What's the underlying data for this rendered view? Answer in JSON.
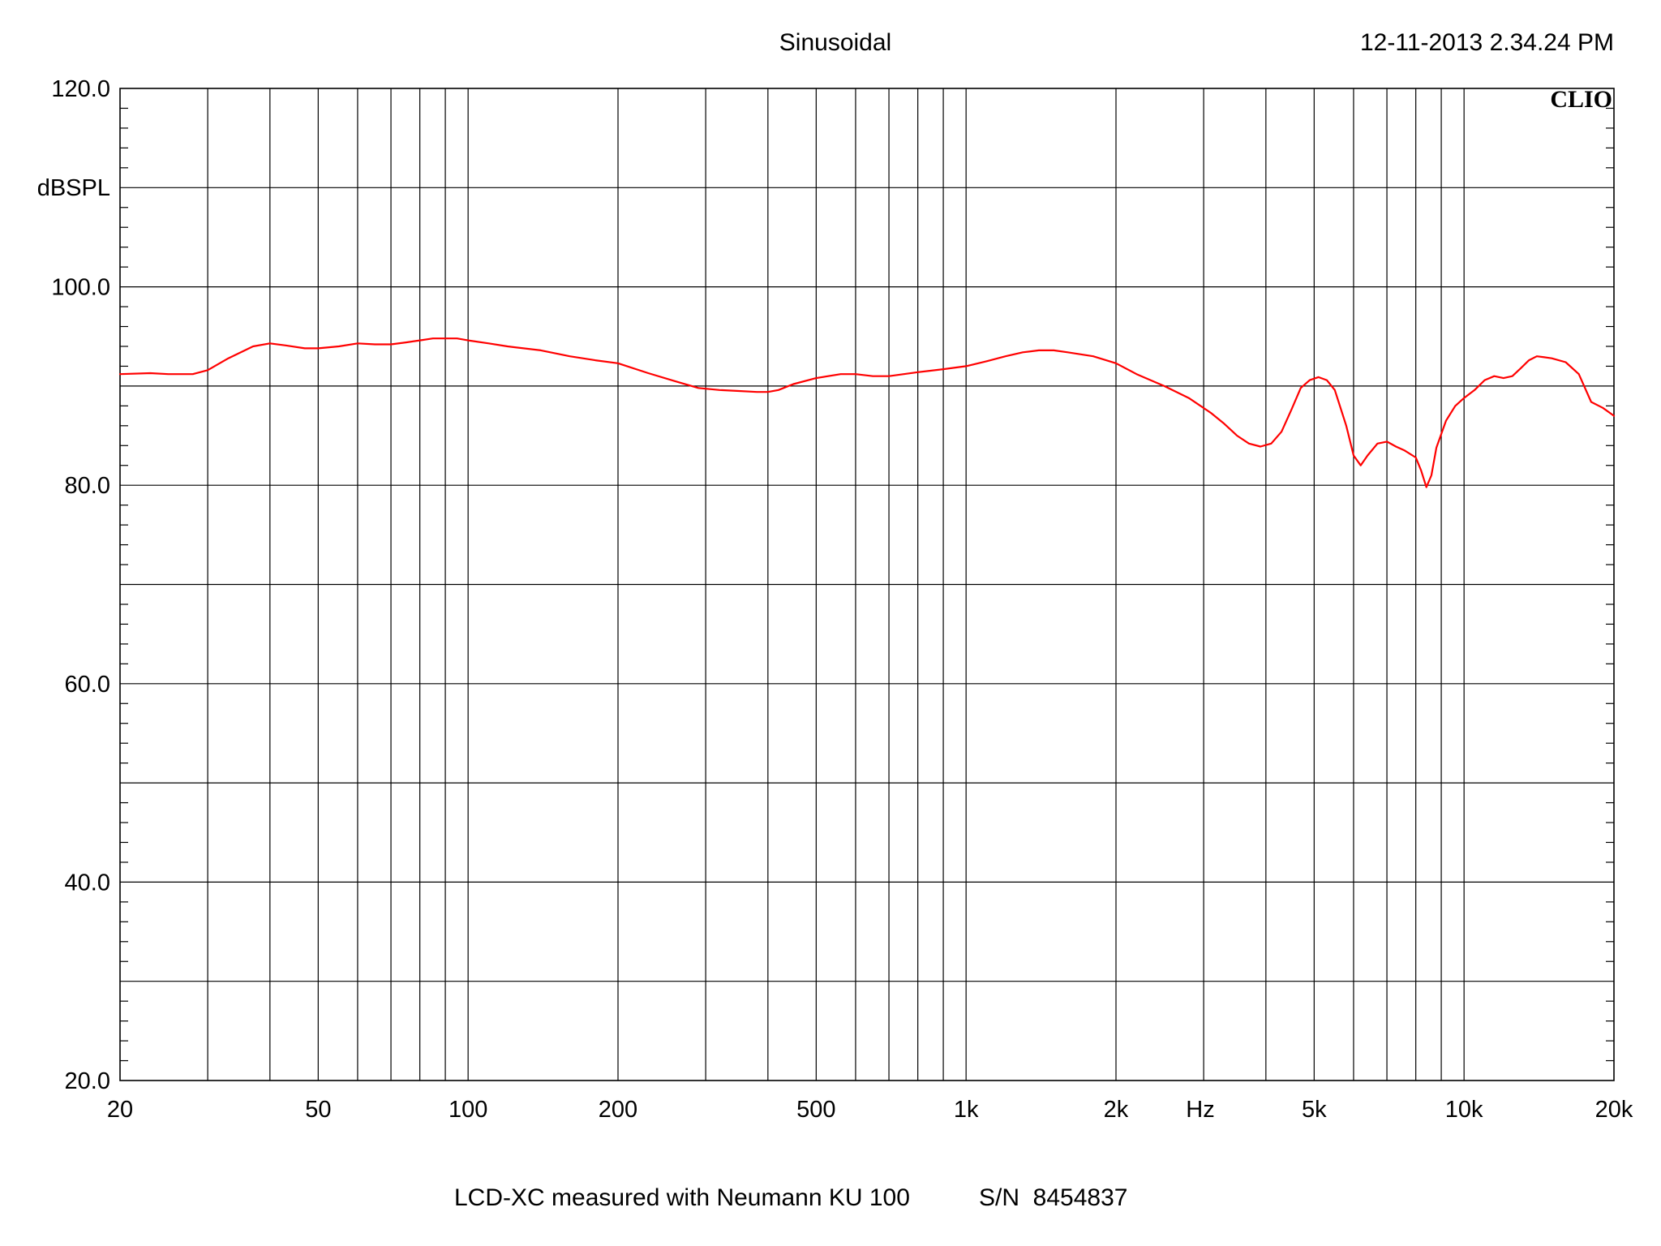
{
  "header": {
    "title": "Sinusoidal",
    "timestamp": "12-11-2013 2.34.24 PM",
    "brand": "CLIO"
  },
  "footer": {
    "caption": "LCD-XC measured with Neumann KU 100",
    "serial": "S/N  8454837"
  },
  "chart_data": {
    "type": "line",
    "xscale": "log",
    "xlim": [
      20,
      20000
    ],
    "ylim": [
      20,
      120
    ],
    "ylabel": "dBSPL",
    "xlabel": "Hz",
    "grid": true,
    "ytick_labels": [
      {
        "value": 20,
        "label": "20.0"
      },
      {
        "value": 40,
        "label": "40.0"
      },
      {
        "value": 60,
        "label": "60.0"
      },
      {
        "value": 80,
        "label": "80.0"
      },
      {
        "value": 100,
        "label": "100.0"
      },
      {
        "value": 120,
        "label": "120.0"
      }
    ],
    "xtick_labels": [
      {
        "value": 20,
        "label": "20"
      },
      {
        "value": 50,
        "label": "50"
      },
      {
        "value": 100,
        "label": "100"
      },
      {
        "value": 200,
        "label": "200"
      },
      {
        "value": 500,
        "label": "500"
      },
      {
        "value": 1000,
        "label": "1k"
      },
      {
        "value": 2000,
        "label": "2k"
      },
      {
        "value": 5000,
        "label": "5k"
      },
      {
        "value": 10000,
        "label": "10k"
      },
      {
        "value": 20000,
        "label": "20k"
      }
    ],
    "series_color": "#ff0000",
    "series": [
      {
        "x": [
          20,
          23,
          25,
          28,
          30,
          33,
          37,
          40,
          43,
          47,
          50,
          55,
          60,
          65,
          70,
          75,
          80,
          85,
          90,
          95,
          100,
          110,
          120,
          140,
          160,
          180,
          200,
          230,
          260,
          290,
          320,
          350,
          380,
          400,
          420,
          450,
          500,
          560,
          600,
          650,
          700,
          800,
          900,
          1000,
          1100,
          1200,
          1300,
          1400,
          1500,
          1600,
          1800,
          2000,
          2200,
          2500,
          2800,
          3100,
          3300,
          3500,
          3700,
          3900,
          4100,
          4300,
          4500,
          4700,
          4900,
          5100,
          5300,
          5500,
          5800,
          6000,
          6200,
          6400,
          6700,
          7000,
          7300,
          7600,
          8000,
          8200,
          8400,
          8600,
          8800,
          9200,
          9600,
          10000,
          10500,
          11000,
          11500,
          12000,
          12500,
          13000,
          13500,
          14000,
          14500,
          15000,
          16000,
          17000,
          18000,
          19000,
          20000
        ],
        "y": [
          91.2,
          91.3,
          91.2,
          91.2,
          91.6,
          92.8,
          94.0,
          94.3,
          94.1,
          93.8,
          93.8,
          94.0,
          94.3,
          94.2,
          94.2,
          94.4,
          94.6,
          94.8,
          94.8,
          94.8,
          94.6,
          94.3,
          94.0,
          93.6,
          93.0,
          92.6,
          92.3,
          91.3,
          90.5,
          89.8,
          89.6,
          89.5,
          89.4,
          89.4,
          89.6,
          90.2,
          90.8,
          91.2,
          91.2,
          91.0,
          91.0,
          91.4,
          91.7,
          92.0,
          92.5,
          93.0,
          93.4,
          93.6,
          93.6,
          93.4,
          93.0,
          92.3,
          91.2,
          90.0,
          88.8,
          87.3,
          86.2,
          85.0,
          84.2,
          83.9,
          84.2,
          85.4,
          87.6,
          89.8,
          90.6,
          90.9,
          90.6,
          89.6,
          86.0,
          83.0,
          82.0,
          83.0,
          84.2,
          84.4,
          83.9,
          83.5,
          82.8,
          81.5,
          79.8,
          81.0,
          83.8,
          86.5,
          88.0,
          88.8,
          89.6,
          90.6,
          91.0,
          90.8,
          91.0,
          91.8,
          92.6,
          93.0,
          92.9,
          92.8,
          92.4,
          91.2,
          88.4,
          87.8,
          87.0
        ]
      }
    ]
  }
}
